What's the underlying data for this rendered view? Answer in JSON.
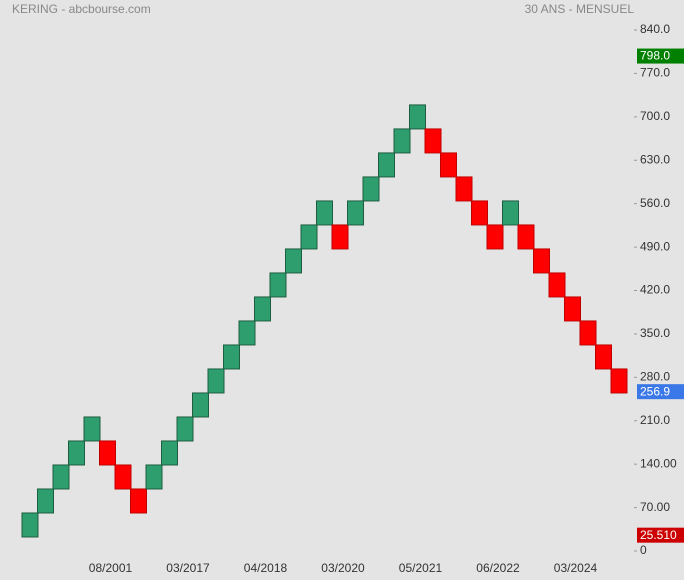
{
  "chart_data": {
    "type": "renko",
    "title": "KERING - abcbourse.com",
    "subtitle": "30 ANS - MENSUEL",
    "categories": [
      null,
      null,
      null,
      null,
      null,
      "08/2001",
      null,
      null,
      null,
      null,
      "03/2017",
      null,
      null,
      null,
      null,
      "04/2018",
      null,
      null,
      null,
      null,
      "03/2020",
      null,
      null,
      null,
      null,
      "05/2021",
      null,
      null,
      null,
      null,
      "06/2022",
      null,
      null,
      null,
      null,
      "03/2024",
      null,
      null,
      null
    ],
    "open": [
      22.6,
      61.3,
      100.0,
      138.7,
      177.4,
      177.4,
      138.7,
      100.0,
      100.0,
      138.7,
      177.4,
      216.1,
      254.8,
      293.5,
      332.2,
      370.9,
      409.6,
      448.3,
      487.0,
      525.7,
      525.7,
      525.7,
      564.4,
      603.1,
      641.8,
      680.5,
      680.5,
      641.8,
      603.1,
      564.4,
      525.7,
      525.7,
      525.7,
      487.0,
      448.3,
      409.6,
      370.9,
      332.2,
      293.5
    ],
    "close": [
      61.3,
      100.0,
      138.7,
      177.4,
      216.1,
      138.7,
      100.0,
      61.3,
      138.7,
      177.4,
      216.1,
      254.8,
      293.5,
      332.2,
      370.9,
      409.6,
      448.3,
      487.0,
      525.7,
      564.4,
      487.0,
      564.4,
      603.1,
      641.8,
      680.5,
      719.2,
      641.8,
      603.1,
      564.4,
      525.7,
      487.0,
      564.4,
      487.0,
      448.3,
      409.6,
      370.9,
      332.2,
      293.5,
      254.8
    ],
    "up_color": "#2e9e6e",
    "down_color": "#ff0000",
    "ylim": [
      0,
      840
    ],
    "yticks": [
      0,
      {
        "value": 70,
        "label": "70.00"
      },
      {
        "value": 140,
        "label": "140.00"
      },
      {
        "value": 210,
        "label": "210.0"
      },
      {
        "value": 280,
        "label": "280.0"
      },
      {
        "value": 350,
        "label": "350.0"
      },
      {
        "value": 420,
        "label": "420.0"
      },
      {
        "value": 490,
        "label": "490.0"
      },
      {
        "value": 560,
        "label": "560.0"
      },
      {
        "value": 630,
        "label": "630.0"
      },
      {
        "value": 700,
        "label": "700.0"
      },
      {
        "value": 770,
        "label": "770.0"
      },
      {
        "value": 840,
        "label": "840.0"
      }
    ],
    "markers": [
      {
        "value": 798,
        "label": "798.0",
        "color": "#008000"
      },
      {
        "value": 256.9,
        "label": "256.9",
        "color": "#3b78e7"
      },
      {
        "value": 25.51,
        "label": "25.510",
        "color": "#cc0000"
      }
    ]
  }
}
